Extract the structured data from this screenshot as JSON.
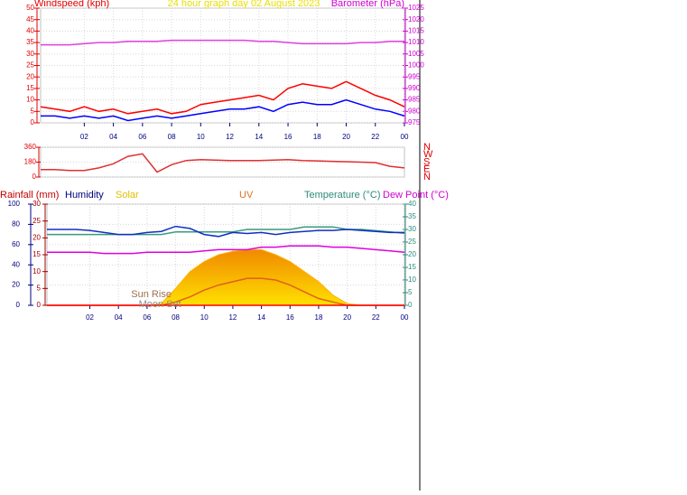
{
  "chart_data": [
    {
      "type": "line",
      "title": "24 hour graph day 02 August 2023",
      "title_color": "#e8e000",
      "ylabel": "Windspeed (kph)",
      "y2label": "Barometer (hPa)",
      "ycolor": "#e00000",
      "y2color": "#d000d0",
      "xcolor": "#000080",
      "x": [
        -1,
        0,
        1,
        2,
        3,
        4,
        5,
        6,
        7,
        8,
        9,
        10,
        11,
        12,
        13,
        14,
        15,
        16,
        17,
        18,
        19,
        20,
        21,
        22,
        23,
        24
      ],
      "xlim": [
        -1,
        24
      ],
      "xticks": [
        {
          "value": 2,
          "label": "02"
        },
        {
          "value": 4,
          "label": "04"
        },
        {
          "value": 6,
          "label": "06"
        },
        {
          "value": 8,
          "label": "08"
        },
        10,
        12,
        14,
        16,
        18,
        20,
        22,
        {
          "value": 24,
          "label": "00"
        }
      ],
      "ylim": [
        0,
        50
      ],
      "yticks": [
        0,
        5,
        10,
        15,
        20,
        25,
        30,
        35,
        40,
        45,
        50
      ],
      "y2lim": [
        975,
        1025
      ],
      "y2ticks": [
        975,
        980,
        985,
        990,
        995,
        1000,
        1005,
        1010,
        1015,
        1020,
        1025
      ],
      "grid": true,
      "series": [
        {
          "color": "#ff0000",
          "values": [
            7,
            6,
            5,
            7,
            5,
            6,
            4,
            5,
            6,
            4,
            5,
            8,
            9,
            10,
            11,
            12,
            10,
            15,
            17,
            16,
            15,
            18,
            15,
            12,
            10,
            7
          ]
        },
        {
          "color": "#0000ff",
          "values": [
            3,
            3,
            2,
            3,
            2,
            3,
            1,
            2,
            3,
            2,
            3,
            4,
            5,
            6,
            6,
            7,
            5,
            8,
            9,
            8,
            8,
            10,
            8,
            6,
            5,
            3
          ]
        },
        {
          "color": "#e040e0",
          "axis": "y2",
          "values": [
            1009,
            1009,
            1009,
            1009.5,
            1010,
            1010,
            1010.5,
            1010.5,
            1010.5,
            1011,
            1011,
            1011,
            1011,
            1011,
            1011,
            1010.5,
            1010.5,
            1010,
            1009.5,
            1009.5,
            1009.5,
            1009.5,
            1010,
            1010,
            1010.5,
            1010.5
          ]
        }
      ]
    },
    {
      "type": "line",
      "ycolor": "#e00000",
      "y2color": "#e00000",
      "x": [
        -1,
        0,
        1,
        2,
        3,
        4,
        5,
        6,
        7,
        8,
        9,
        10,
        11,
        12,
        13,
        14,
        15,
        16,
        17,
        18,
        19,
        20,
        21,
        22,
        23,
        24
      ],
      "xlim": [
        -1,
        24
      ],
      "ylim": [
        0,
        360
      ],
      "yticks": [
        0,
        180,
        360
      ],
      "y2lim": [
        0,
        360
      ],
      "y2ticks": [
        {
          "value": 0,
          "label": "N"
        },
        {
          "value": 90,
          "label": "E"
        },
        {
          "value": 180,
          "label": "S"
        },
        {
          "value": 270,
          "label": "W"
        },
        {
          "value": 360,
          "label": "N"
        }
      ],
      "grid": true,
      "series": [
        {
          "color": "#e03030",
          "values": [
            90,
            90,
            80,
            80,
            110,
            160,
            250,
            280,
            60,
            150,
            200,
            210,
            205,
            200,
            200,
            200,
            205,
            210,
            200,
            195,
            190,
            185,
            180,
            175,
            130,
            110
          ]
        }
      ]
    },
    {
      "type": "line",
      "ycolor": "#000080",
      "y2color": "#a00000",
      "y3color": "#2e8b7a",
      "xcolor": "#000080",
      "axis_labels": [
        {
          "text": "Rainfall (mm)",
          "color": "#c00000"
        },
        {
          "text": "Humidity",
          "color": "#000080"
        },
        {
          "text": "Solar",
          "color": "#e0c000"
        },
        {
          "text": "UV",
          "color": "#e07020"
        },
        {
          "text": "Temperature (°C)",
          "color": "#2e8b7a"
        },
        {
          "text": "Dew Point (°C)",
          "color": "#d000d0"
        }
      ],
      "x": [
        -1,
        0,
        1,
        2,
        3,
        4,
        5,
        6,
        7,
        8,
        9,
        10,
        11,
        12,
        13,
        14,
        15,
        16,
        17,
        18,
        19,
        20,
        21,
        22,
        23,
        24
      ],
      "xlim": [
        -1,
        24
      ],
      "xticks": [
        {
          "value": 2,
          "label": "02"
        },
        {
          "value": 4,
          "label": "04"
        },
        {
          "value": 6,
          "label": "06"
        },
        {
          "value": 8,
          "label": "08"
        },
        10,
        12,
        14,
        16,
        18,
        20,
        22,
        {
          "value": 24,
          "label": "00"
        }
      ],
      "ylim": [
        0,
        100
      ],
      "yticks": [
        0,
        20,
        40,
        60,
        80,
        100
      ],
      "y2lim": [
        0,
        30
      ],
      "y2ticks": [
        0,
        5,
        10,
        15,
        20,
        25,
        30
      ],
      "y3lim": [
        0,
        40
      ],
      "y3ticks": [
        0,
        5,
        10,
        15,
        20,
        25,
        30,
        35,
        40
      ],
      "grid": true,
      "annotations": [
        {
          "text": "Sun Rise",
          "x": 6.3,
          "color": "#a07050"
        },
        {
          "text": "Moon Set",
          "x": 6.9,
          "color": "#909090"
        }
      ],
      "series": [
        {
          "color": "#ffb000",
          "axis": "y2",
          "area": true,
          "values": [
            0,
            0,
            0,
            0,
            0,
            0,
            0,
            0,
            0.5,
            5,
            10,
            13,
            15,
            16,
            16.5,
            16.5,
            15,
            13,
            10,
            7,
            3,
            0.5,
            0,
            0,
            0,
            0
          ]
        },
        {
          "color": "#e06020",
          "axis": "y2",
          "values": [
            0,
            0,
            0,
            0,
            0,
            0,
            0,
            0,
            0,
            1,
            2.5,
            4.5,
            6,
            7,
            8,
            8,
            7.5,
            6,
            4,
            2,
            1,
            0,
            0,
            0,
            0,
            0
          ]
        },
        {
          "color": "#ff0000",
          "axis": "y2",
          "values": [
            0,
            0,
            0,
            0,
            0,
            0,
            0,
            0,
            0,
            0,
            0,
            0,
            0,
            0,
            0,
            0,
            0,
            0,
            0,
            0,
            0,
            0,
            0,
            0,
            0,
            0
          ]
        },
        {
          "color": "#e000e0",
          "axis": "y3",
          "values": [
            21,
            21,
            21,
            21,
            20.5,
            20.5,
            20.5,
            21,
            21,
            21,
            21,
            21.5,
            22,
            22,
            22,
            23,
            23,
            23.5,
            23.5,
            23.5,
            23,
            23,
            22.5,
            22,
            21.5,
            21
          ]
        },
        {
          "color": "#3a9a80",
          "axis": "y3",
          "values": [
            28,
            28,
            28,
            28,
            28,
            28,
            28,
            28,
            28,
            29,
            29,
            29,
            29,
            29,
            30,
            30,
            30,
            30,
            31,
            31,
            31,
            30,
            30,
            29.5,
            29,
            28.5
          ]
        },
        {
          "color": "#1030c0",
          "values": [
            75,
            75,
            75,
            74,
            72,
            70,
            70,
            72,
            73,
            78,
            76,
            70,
            68,
            72,
            71,
            72,
            70,
            72,
            73,
            74,
            74,
            75,
            74,
            73,
            72,
            72
          ]
        }
      ]
    }
  ]
}
